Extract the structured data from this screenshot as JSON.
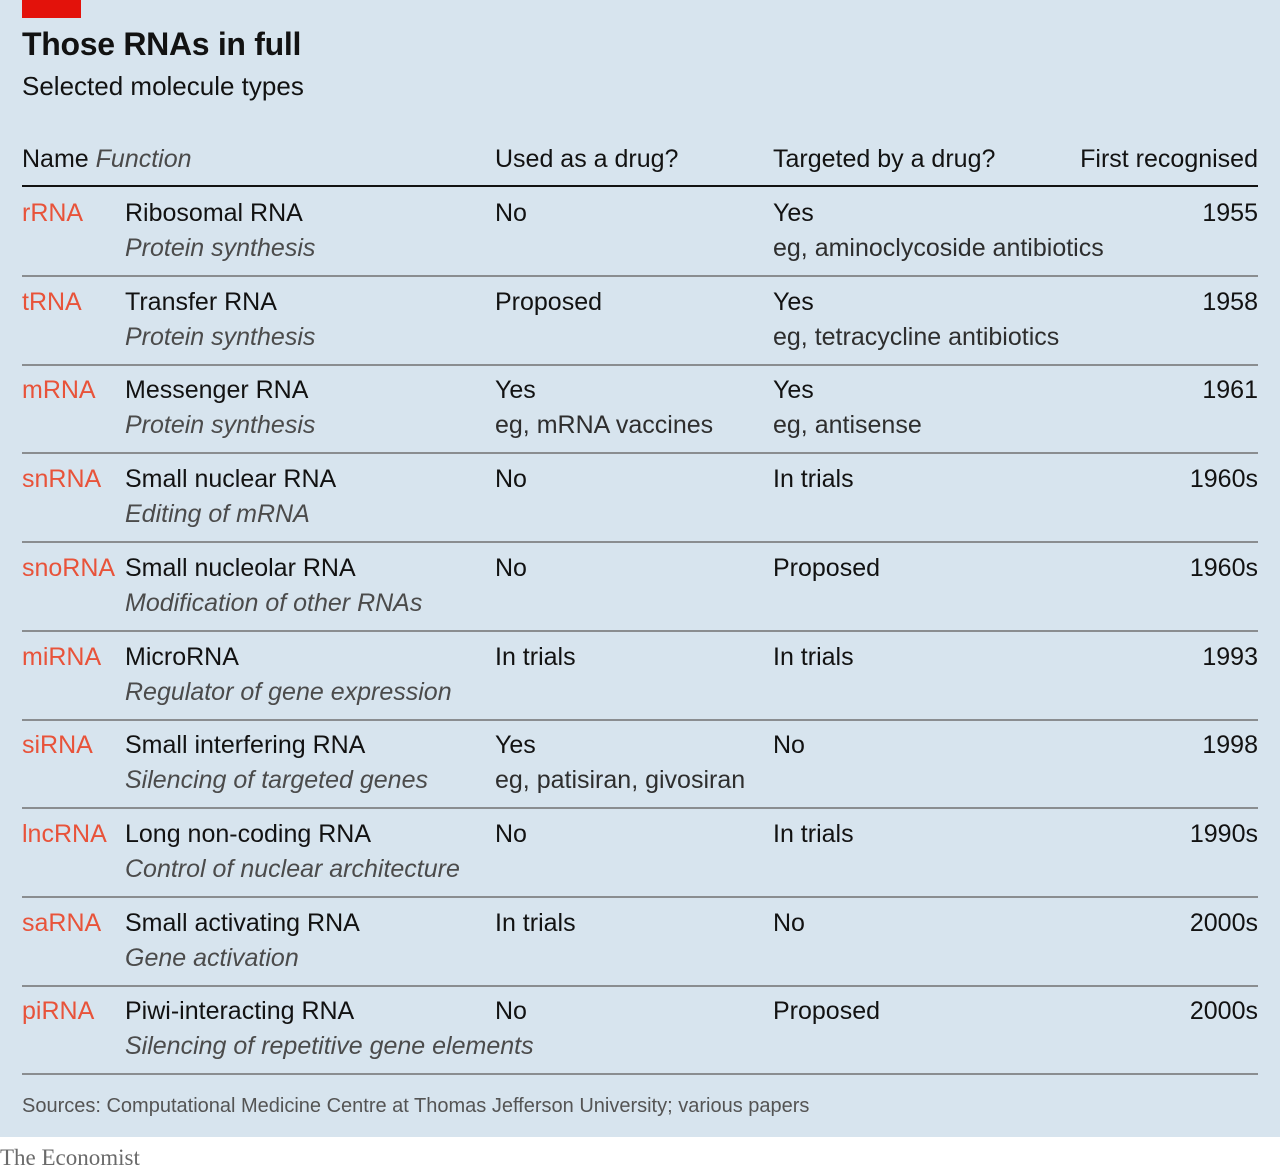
{
  "title": "Those RNAs in full",
  "subtitle": "Selected molecule types",
  "headers": {
    "name": "Name",
    "function": "Function",
    "used": "Used as a drug?",
    "targeted": "Targeted by a drug?",
    "first": "First recognised"
  },
  "colors": {
    "accent": "#e3120b",
    "abbr": "#e8533a",
    "background": "#d7e4ee"
  },
  "chart_data": {
    "type": "table",
    "columns": [
      "Name",
      "Function",
      "Used as a drug?",
      "Targeted by a drug?",
      "First recognised"
    ],
    "rows": [
      {
        "abbr": "rRNA",
        "name": "Ribosomal RNA",
        "function": "Protein synthesis",
        "used": "No",
        "used_note": "",
        "targeted": "Yes",
        "targeted_note": "eg, aminoclycoside antibiotics",
        "first": "1955"
      },
      {
        "abbr": "tRNA",
        "name": "Transfer RNA",
        "function": "Protein synthesis",
        "used": "Proposed",
        "used_note": "",
        "targeted": "Yes",
        "targeted_note": "eg, tetracycline antibiotics",
        "first": "1958"
      },
      {
        "abbr": "mRNA",
        "name": "Messenger RNA",
        "function": "Protein synthesis",
        "used": "Yes",
        "used_note": "eg, mRNA vaccines",
        "targeted": "Yes",
        "targeted_note": "eg, antisense",
        "first": "1961"
      },
      {
        "abbr": "snRNA",
        "name": "Small nuclear RNA",
        "function": "Editing of mRNA",
        "used": "No",
        "used_note": "",
        "targeted": "In trials",
        "targeted_note": "",
        "first": "1960s"
      },
      {
        "abbr": "snoRNA",
        "name": "Small nucleolar RNA",
        "function": "Modification of other RNAs",
        "used": "No",
        "used_note": "",
        "targeted": "Proposed",
        "targeted_note": "",
        "first": "1960s"
      },
      {
        "abbr": "miRNA",
        "name": "MicroRNA",
        "function": "Regulator of gene expression",
        "used": "In trials",
        "used_note": "",
        "targeted": "In trials",
        "targeted_note": "",
        "first": "1993"
      },
      {
        "abbr": "siRNA",
        "name": "Small interfering RNA",
        "function": "Silencing of targeted genes",
        "used": "Yes",
        "used_note": "eg, patisiran, givosiran",
        "targeted": "No",
        "targeted_note": "",
        "first": "1998"
      },
      {
        "abbr": "lncRNA",
        "name": "Long non-coding RNA",
        "function": "Control of nuclear architecture",
        "used": "No",
        "used_note": "",
        "targeted": "In trials",
        "targeted_note": "",
        "first": "1990s"
      },
      {
        "abbr": "saRNA",
        "name": "Small activating RNA",
        "function": "Gene activation",
        "used": "In trials",
        "used_note": "",
        "targeted": "No",
        "targeted_note": "",
        "first": "2000s"
      },
      {
        "abbr": "piRNA",
        "name": "Piwi-interacting RNA",
        "function": "Silencing of repetitive gene elements",
        "used": "No",
        "used_note": "",
        "targeted": "Proposed",
        "targeted_note": "",
        "first": "2000s"
      }
    ]
  },
  "source": "Sources: Computational Medicine Centre at Thomas Jefferson University; various papers",
  "brand": "The Economist"
}
